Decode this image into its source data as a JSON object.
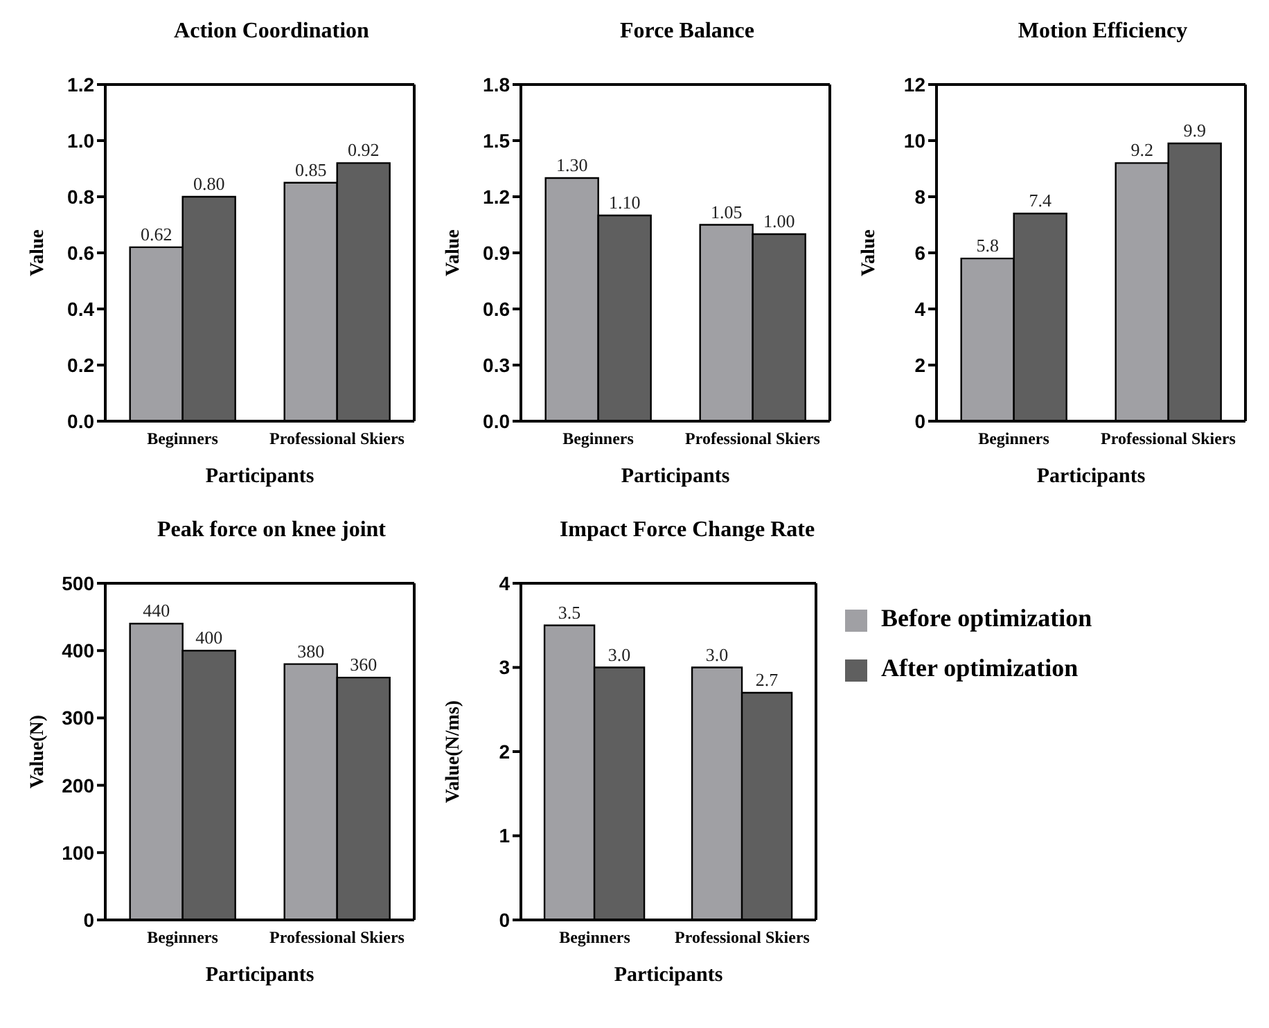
{
  "chart_data": [
    {
      "type": "bar",
      "title": "Action Coordination",
      "xlabel": "Participants",
      "ylabel": "Value",
      "categories": [
        "Beginners",
        "Professional Skiers"
      ],
      "series": [
        {
          "color": "#a0a0a4",
          "values": [
            0.62,
            0.85
          ],
          "value_labels": [
            "0.62",
            "0.85"
          ]
        },
        {
          "color": "#5f5f5f",
          "values": [
            0.8,
            0.92
          ],
          "value_labels": [
            "0.80",
            "0.92"
          ]
        }
      ],
      "ylim": [
        0,
        1.2
      ],
      "yticks": [
        {
          "value": 0,
          "label": "0.0"
        },
        {
          "value": 0.2,
          "label": "0.2"
        },
        {
          "value": 0.4,
          "label": "0.4"
        },
        {
          "value": 0.6,
          "label": "0.6"
        },
        {
          "value": 0.8,
          "label": "0.8"
        },
        {
          "value": 1,
          "label": "1.0"
        },
        {
          "value": 1.2,
          "label": "1.2"
        }
      ],
      "legend": false
    },
    {
      "type": "bar",
      "title": "Force Balance",
      "xlabel": "Participants",
      "ylabel": "Value",
      "categories": [
        "Beginners",
        "Professional Skiers"
      ],
      "series": [
        {
          "color": "#a0a0a4",
          "values": [
            1.3,
            1.05
          ],
          "value_labels": [
            "1.30",
            "1.05"
          ]
        },
        {
          "color": "#5f5f5f",
          "values": [
            1.1,
            1.0
          ],
          "value_labels": [
            "1.10",
            "1.00"
          ]
        }
      ],
      "ylim": [
        0,
        1.8
      ],
      "yticks": [
        {
          "value": 0,
          "label": "0.0"
        },
        {
          "value": 0.3,
          "label": "0.3"
        },
        {
          "value": 0.6,
          "label": "0.6"
        },
        {
          "value": 0.9,
          "label": "0.9"
        },
        {
          "value": 1.2,
          "label": "1.2"
        },
        {
          "value": 1.5,
          "label": "1.5"
        },
        {
          "value": 1.8,
          "label": "1.8"
        }
      ],
      "legend": false
    },
    {
      "type": "bar",
      "title": "Motion Efficiency",
      "xlabel": "Participants",
      "ylabel": "Value",
      "categories": [
        "Beginners",
        "Professional Skiers"
      ],
      "series": [
        {
          "color": "#a0a0a4",
          "values": [
            5.8,
            9.2
          ],
          "value_labels": [
            "5.8",
            "9.2"
          ]
        },
        {
          "color": "#5f5f5f",
          "values": [
            7.4,
            9.9
          ],
          "value_labels": [
            "7.4",
            "9.9"
          ]
        }
      ],
      "ylim": [
        0,
        12
      ],
      "yticks": [
        0,
        2,
        4,
        6,
        8,
        10,
        12
      ],
      "legend": false
    },
    {
      "type": "bar",
      "title": "Peak force on knee joint",
      "xlabel": "Participants",
      "ylabel": "Value(N)",
      "categories": [
        "Beginners",
        "Professional Skiers"
      ],
      "series": [
        {
          "color": "#a0a0a4",
          "values": [
            440,
            380
          ],
          "value_labels": [
            "440",
            "380"
          ]
        },
        {
          "color": "#5f5f5f",
          "values": [
            400,
            360
          ],
          "value_labels": [
            "400",
            "360"
          ]
        }
      ],
      "ylim": [
        0,
        500
      ],
      "yticks": [
        0,
        100,
        200,
        300,
        400,
        500
      ],
      "legend": false
    },
    {
      "type": "bar",
      "title": "Impact Force Change Rate",
      "xlabel": "Participants",
      "ylabel": "Value(N/ms)",
      "categories": [
        "Beginners",
        "Professional Skiers"
      ],
      "series": [
        {
          "name": "Before optimization",
          "color": "#a0a0a4",
          "values": [
            3.5,
            3.0
          ],
          "value_labels": [
            "3.5",
            "3.0"
          ]
        },
        {
          "name": "After optimization",
          "color": "#5f5f5f",
          "values": [
            3.0,
            2.7
          ],
          "value_labels": [
            "3.0",
            "2.7"
          ]
        }
      ],
      "ylim": [
        0,
        4
      ],
      "yticks": [
        0,
        1,
        2,
        3,
        4
      ],
      "legend": "right"
    }
  ]
}
